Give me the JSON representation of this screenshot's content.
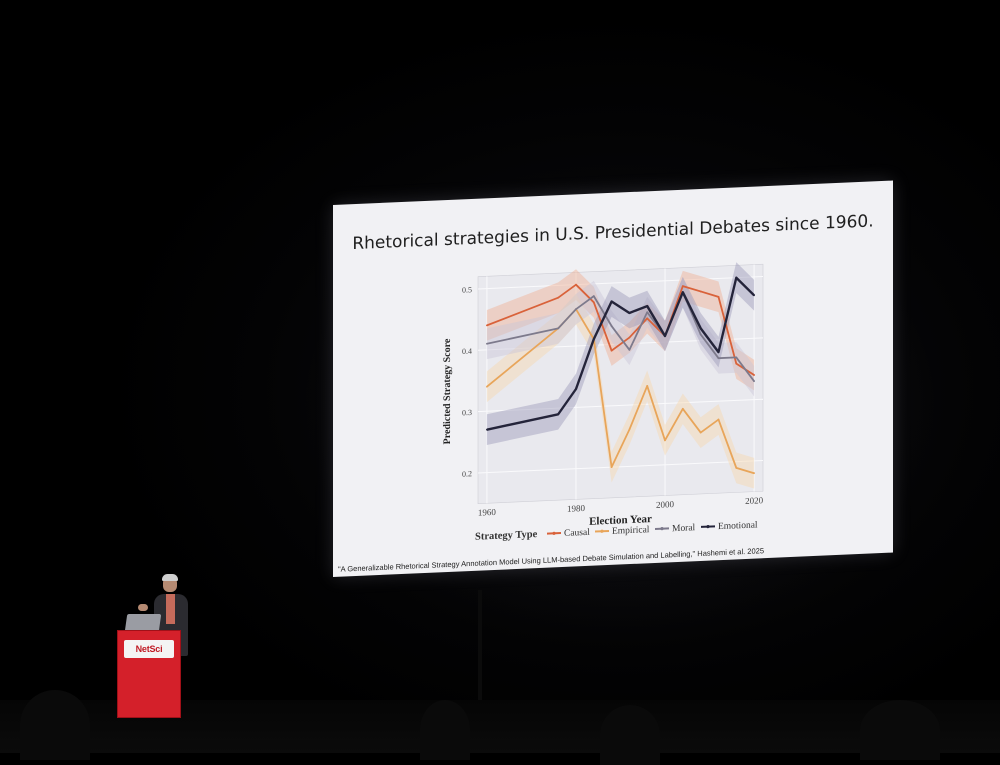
{
  "slide": {
    "title": "Rhetorical strategies in U.S. Presidential Debates since 1960.",
    "citation": "\"A Generalizable Rhetorical Strategy Annotation Model Using LLM-based Debate Simulation and Labelling,\" Hashemi et al. 2025"
  },
  "podium": {
    "logo_text": "NetSci"
  },
  "chart_data": {
    "type": "line",
    "title": "Rhetorical strategies in U.S. Presidential Debates since 1960.",
    "xlabel": "Election Year",
    "ylabel": "Predicted Strategy Score",
    "xlim": [
      1958,
      2022
    ],
    "ylim": [
      0.15,
      0.52
    ],
    "xticks": [
      "1960",
      "1980",
      "2000",
      "2020"
    ],
    "yticks": [
      "0.2",
      "0.3",
      "0.4",
      "0.5"
    ],
    "grid": true,
    "legend_title": "Strategy Type",
    "legend_position": "bottom",
    "x": [
      1960,
      1976,
      1980,
      1984,
      1988,
      1992,
      1996,
      2000,
      2004,
      2008,
      2012,
      2016,
      2020
    ],
    "series": [
      {
        "name": "Causal",
        "color": "#d9623a",
        "values": [
          0.44,
          0.48,
          0.5,
          0.47,
          0.39,
          0.41,
          0.44,
          0.41,
          0.49,
          0.48,
          0.47,
          0.36,
          0.34
        ]
      },
      {
        "name": "Empirical",
        "color": "#e8a55a",
        "values": [
          0.34,
          0.43,
          0.46,
          0.41,
          0.2,
          0.26,
          0.33,
          0.24,
          0.29,
          0.25,
          0.27,
          0.19,
          0.18
        ]
      },
      {
        "name": "Moral",
        "color": "#7d7a8c",
        "values": [
          0.41,
          0.43,
          0.46,
          0.48,
          0.43,
          0.39,
          0.45,
          0.41,
          0.48,
          0.41,
          0.37,
          0.37,
          0.33
        ]
      },
      {
        "name": "Emotional",
        "color": "#24243a",
        "values": [
          0.27,
          0.29,
          0.33,
          0.41,
          0.47,
          0.45,
          0.46,
          0.41,
          0.48,
          0.42,
          0.38,
          0.5,
          0.47
        ]
      }
    ],
    "band_colors": {
      "Causal": "#f0b092",
      "Empirical": "#f6d7ae",
      "Moral": "#c9c6d6",
      "Emotional": "#9c9ab8"
    }
  }
}
